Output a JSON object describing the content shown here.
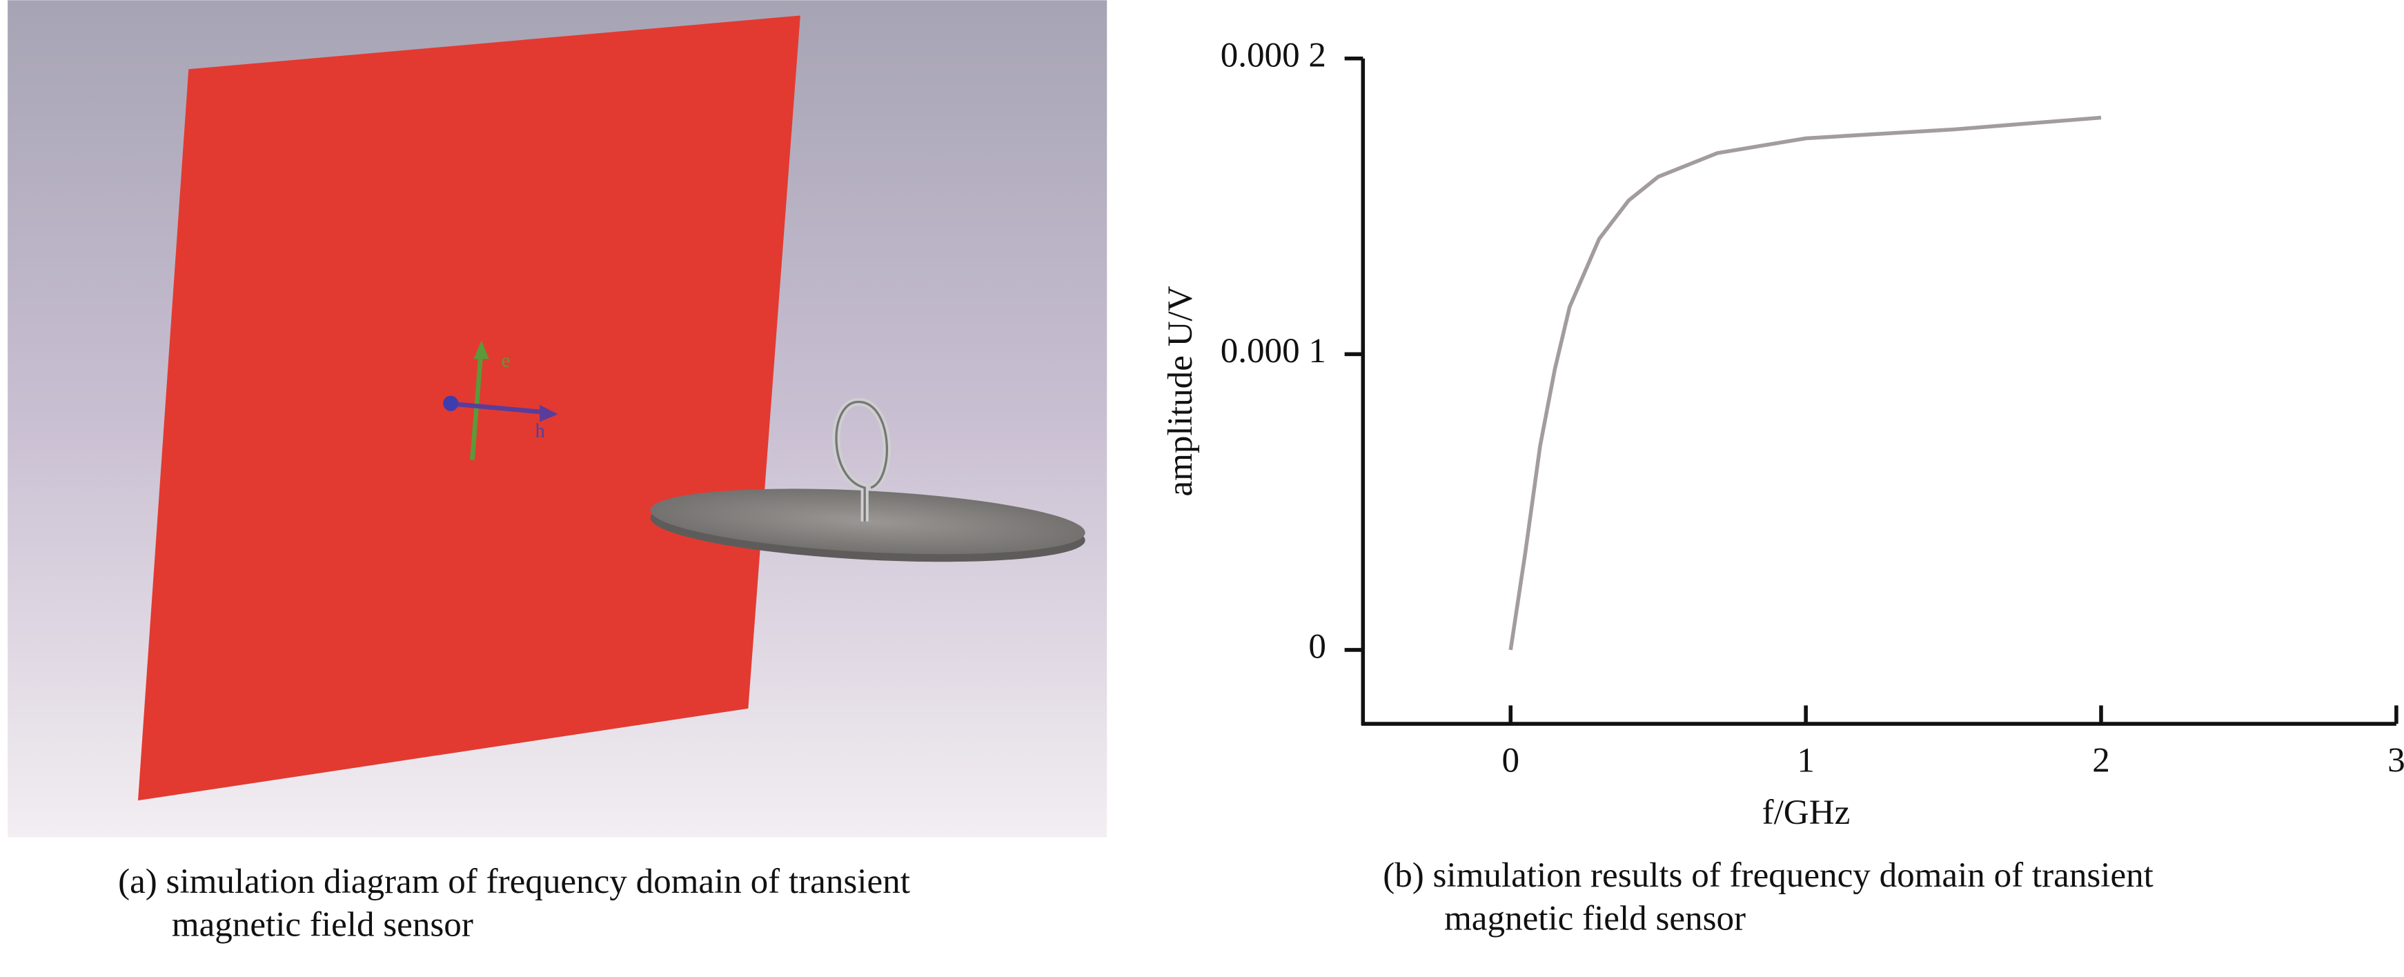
{
  "diagram": {
    "labels": [
      "e",
      "h"
    ]
  },
  "captions": {
    "a": [
      "(a) simulation diagram of frequency domain of transient",
      "magnetic field sensor"
    ],
    "b": [
      "(b) simulation results of frequency domain of transient",
      "magnetic field sensor"
    ]
  },
  "chart_data": {
    "type": "line",
    "x_label": "f/GHz",
    "y_label": "amplitude U/V",
    "x": [
      0,
      0.05,
      0.1,
      0.15,
      0.2,
      0.3,
      0.4,
      0.5,
      0.7,
      1.0,
      1.5,
      2.0
    ],
    "values": [
      0,
      3.3e-05,
      6.9e-05,
      9.5e-05,
      0.000116,
      0.000139,
      0.000152,
      0.00016,
      0.000168,
      0.000173,
      0.000176,
      0.00018
    ],
    "color": "#a39c9c",
    "xlim": [
      -0.5,
      3
    ],
    "xticks": [
      0,
      1,
      2,
      3
    ],
    "ylim": [
      -2.5e-05,
      0.0002
    ],
    "yticks": [
      {
        "value": 0.0002,
        "label": "0.000 2"
      },
      {
        "value": 0.0001,
        "label": "0.000 1"
      },
      0
    ]
  }
}
